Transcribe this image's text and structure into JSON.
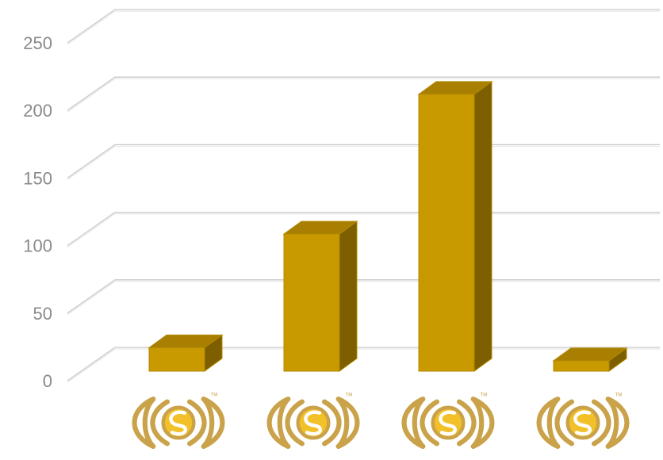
{
  "chart_data": {
    "type": "bar",
    "style": "3d-column",
    "categories": [
      "logo-1",
      "logo-2",
      "logo-3",
      "logo-4"
    ],
    "values": [
      18,
      105,
      212,
      8
    ],
    "ylim": [
      0,
      250
    ],
    "yticks": [
      0,
      50,
      100,
      150,
      200,
      250
    ],
    "grid": true,
    "legend": "none",
    "colors": {
      "bar_front": "#c99a00",
      "bar_top": "#a87f00",
      "bar_side": "#7d5f00",
      "bar_edge": "#b38900",
      "logo_gold": "#c9a24a",
      "logo_fill": "#f2c028",
      "grid": "#c9c9c9",
      "tick_text": "#8a8a8a"
    },
    "category_icons": [
      "gold-swirl-logo-icon",
      "gold-swirl-logo-icon",
      "gold-swirl-logo-icon",
      "gold-swirl-logo-icon"
    ]
  }
}
